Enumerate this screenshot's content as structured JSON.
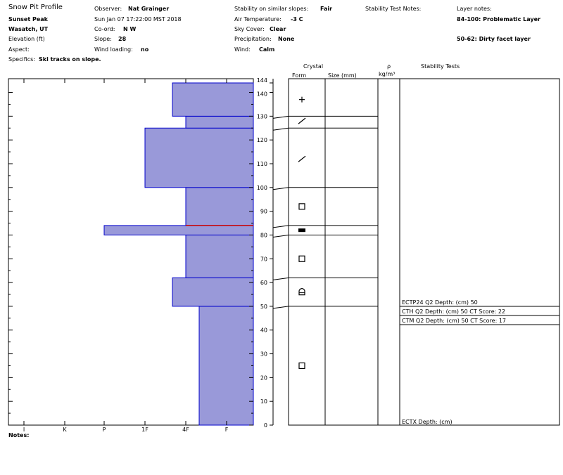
{
  "header": {
    "title": "Snow Pit Profile",
    "location": "Sunset Peak",
    "region": "Wasatch, UT",
    "elevation_label": "Elevation (ft)",
    "aspect_label": "Aspect:",
    "specifics_label": "Specifics:",
    "specifics_value": "Ski tracks on slope.",
    "observer_label": "Observer:",
    "observer_value": "Nat Grainger",
    "datetime": "Sun Jan 07 17:22:00 MST 2018",
    "coord_label": "Co-ord:",
    "coord_value": "N  W",
    "slope_label": "Slope:",
    "slope_value": "28",
    "wind_loading_label": "Wind loading:",
    "wind_loading_value": "no",
    "stability_label": "Stability on similar slopes:",
    "stability_value": "Fair",
    "air_temp_label": "Air Temperature:",
    "air_temp_value": "-3 C",
    "sky_label": "Sky Cover:",
    "sky_value": "Clear",
    "precip_label": "Precipitation:",
    "precip_value": "None",
    "wind_label": "Wind:",
    "wind_value": "Calm",
    "stability_notes_label": "Stability Test Notes:",
    "layer_notes_label": "Layer notes:",
    "layer_note_1": "84-100: Problematic Layer",
    "layer_note_2": "50-62: Dirty facet layer"
  },
  "columns": {
    "crystal": "Crystal",
    "form": "Form",
    "size": "Size (mm)",
    "rho": "ρ",
    "density_unit": "kg/m³",
    "stability_tests": "Stability Tests"
  },
  "notes_label": "Notes:",
  "colors": {
    "fill": "#9999d9",
    "outline": "#0000cc",
    "weak_layer": "#cc0000"
  },
  "chart_data": {
    "type": "bar",
    "y_axis_ticks": [
      "0",
      "10",
      "20",
      "30",
      "40",
      "50",
      "60",
      "70",
      "80",
      "90",
      "100",
      "110",
      "120",
      "130",
      "140",
      "144"
    ],
    "ylim": [
      0,
      144
    ],
    "x_axis_ticks": [
      "I",
      "K",
      "P",
      "1F",
      "4F",
      "F"
    ],
    "hardness_layers": [
      {
        "bottom": 0,
        "top": 50,
        "hardness": "4F-"
      },
      {
        "bottom": 50,
        "top": 62,
        "hardness": "4F+"
      },
      {
        "bottom": 62,
        "top": 80,
        "hardness": "4F"
      },
      {
        "bottom": 80,
        "top": 84,
        "hardness": "P"
      },
      {
        "bottom": 84,
        "top": 100,
        "hardness": "4F"
      },
      {
        "bottom": 100,
        "top": 125,
        "hardness": "1F"
      },
      {
        "bottom": 125,
        "top": 130,
        "hardness": "4F"
      },
      {
        "bottom": 130,
        "top": 144,
        "hardness": "4F+"
      }
    ],
    "weak_layer_height": 84,
    "layer_boundaries": [
      130,
      125,
      100,
      84,
      80,
      62,
      50
    ],
    "crystal_forms": [
      {
        "height": 137,
        "form": "PP"
      },
      {
        "height": 128,
        "form": "DF"
      },
      {
        "height": 112,
        "form": "DF"
      },
      {
        "height": 92,
        "form": "FC"
      },
      {
        "height": 82,
        "form": "SH"
      },
      {
        "height": 70,
        "form": "FC"
      },
      {
        "height": 56,
        "form": "FCxr"
      },
      {
        "height": 25,
        "form": "FC"
      }
    ],
    "stability_tests": [
      "ECTP24 Q2 Depth: (cm) 50",
      "CTH Q2 Depth: (cm) 50 CT Score: 22",
      "CTM Q2 Depth: (cm) 50 CT Score: 17",
      "ECTX   Depth: (cm)"
    ]
  }
}
